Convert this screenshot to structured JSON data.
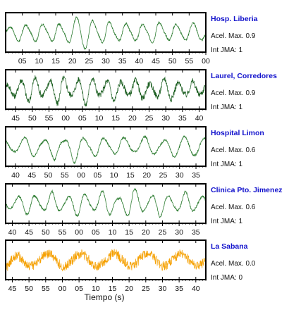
{
  "chart_data": {
    "type": "line",
    "xlabel": "Tiempo (s)",
    "panels": [
      {
        "station": "Hosp. Liberia",
        "acel_max": "Acel. Max. 0.9",
        "int_jma": "Int JMA: 1",
        "color": "#2e7d32",
        "noise": "low",
        "x_tick_labels": [
          "05",
          "10",
          "15",
          "20",
          "25",
          "30",
          "35",
          "40",
          "45",
          "50",
          "55",
          "00"
        ],
        "x_tick_start_seconds": 5,
        "x_range_seconds": [
          0,
          60
        ],
        "y_range": [
          -1,
          1
        ],
        "cycles": 12,
        "series": [
          {
            "t": 0,
            "v": 0.05
          },
          {
            "t": 5,
            "v": -0.45
          },
          {
            "t": 10,
            "v": 0.55
          },
          {
            "t": 15,
            "v": -0.6
          },
          {
            "t": 20,
            "v": 0.75
          },
          {
            "t": 25,
            "v": 0.95
          },
          {
            "t": 30,
            "v": -0.8
          },
          {
            "t": 35,
            "v": 0.6
          },
          {
            "t": 40,
            "v": -0.55
          },
          {
            "t": 45,
            "v": 0.7
          },
          {
            "t": 50,
            "v": -0.5
          },
          {
            "t": 55,
            "v": 0.45
          },
          {
            "t": 60,
            "v": 0.2
          }
        ]
      },
      {
        "station": "Laurel, Corredores",
        "acel_max": "Acel. Max. 0.9",
        "int_jma": "Int JMA: 1",
        "color": "#1b5e20",
        "noise": "high",
        "x_tick_labels": [
          "45",
          "50",
          "55",
          "00",
          "05",
          "10",
          "15",
          "20",
          "25",
          "30",
          "35",
          "40"
        ],
        "x_tick_start_seconds": 45,
        "x_range_seconds": [
          42,
          102
        ],
        "y_range": [
          -1,
          1
        ],
        "cycles": 14,
        "series": [
          {
            "t": 42,
            "v": 0.1
          },
          {
            "t": 50,
            "v": -0.7
          },
          {
            "t": 58,
            "v": 0.85
          },
          {
            "t": 66,
            "v": -0.9
          },
          {
            "t": 74,
            "v": 0.6
          },
          {
            "t": 82,
            "v": -0.5
          },
          {
            "t": 90,
            "v": 0.55
          },
          {
            "t": 98,
            "v": -0.3
          },
          {
            "t": 102,
            "v": 0.2
          }
        ]
      },
      {
        "station": "Hospital Limon",
        "acel_max": "Acel. Max. 0.6",
        "int_jma": "Int JMA: 1",
        "color": "#2e7d32",
        "noise": "low",
        "x_tick_labels": [
          "40",
          "45",
          "50",
          "55",
          "00",
          "05",
          "10",
          "15",
          "20",
          "25",
          "30",
          "35"
        ],
        "x_tick_start_seconds": 40,
        "x_range_seconds": [
          37,
          98
        ],
        "y_range": [
          -1,
          1
        ],
        "cycles": 10,
        "series": [
          {
            "t": 37,
            "v": -0.2
          },
          {
            "t": 45,
            "v": 0.55
          },
          {
            "t": 52,
            "v": -0.7
          },
          {
            "t": 58,
            "v": 0.95
          },
          {
            "t": 65,
            "v": -0.6
          },
          {
            "t": 72,
            "v": 0.5
          },
          {
            "t": 80,
            "v": -0.5
          },
          {
            "t": 88,
            "v": 0.45
          },
          {
            "t": 98,
            "v": 0.3
          }
        ]
      },
      {
        "station": "Clinica Pto. Jimenez",
        "acel_max": "Acel. Max. 0.6",
        "int_jma": "Int JMA: 1",
        "color": "#2e7d32",
        "noise": "low",
        "x_tick_labels": [
          "40",
          "45",
          "50",
          "55",
          "00",
          "05",
          "10",
          "15",
          "20",
          "25",
          "30",
          "35"
        ],
        "x_tick_start_seconds": 40,
        "x_range_seconds": [
          38,
          98
        ],
        "y_range": [
          -1,
          1
        ],
        "cycles": 12,
        "series": [
          {
            "t": 38,
            "v": 0.2
          },
          {
            "t": 45,
            "v": -0.55
          },
          {
            "t": 52,
            "v": 0.6
          },
          {
            "t": 60,
            "v": -0.7
          },
          {
            "t": 68,
            "v": 0.8
          },
          {
            "t": 76,
            "v": -0.95
          },
          {
            "t": 84,
            "v": 0.7
          },
          {
            "t": 92,
            "v": -0.6
          },
          {
            "t": 98,
            "v": 0.4
          }
        ]
      },
      {
        "station": "La Sabana",
        "acel_max": "Acel. Max. 0.0",
        "int_jma": "Int JMA: 0",
        "color": "#f5a000",
        "noise": "very-high",
        "x_tick_labels": [
          "45",
          "50",
          "55",
          "00",
          "05",
          "10",
          "15",
          "20",
          "25",
          "30",
          "35",
          "40"
        ],
        "x_tick_start_seconds": 45,
        "x_range_seconds": [
          43,
          103
        ],
        "y_range": [
          -1,
          1
        ],
        "cycles": 6,
        "series": [
          {
            "t": 43,
            "v": 0.1
          },
          {
            "t": 46,
            "v": -0.7
          },
          {
            "t": 50,
            "v": 0.4
          },
          {
            "t": 60,
            "v": -0.2
          },
          {
            "t": 70,
            "v": 0.3
          },
          {
            "t": 80,
            "v": -0.1
          },
          {
            "t": 90,
            "v": 0.2
          },
          {
            "t": 103,
            "v": -0.1
          }
        ]
      }
    ]
  }
}
